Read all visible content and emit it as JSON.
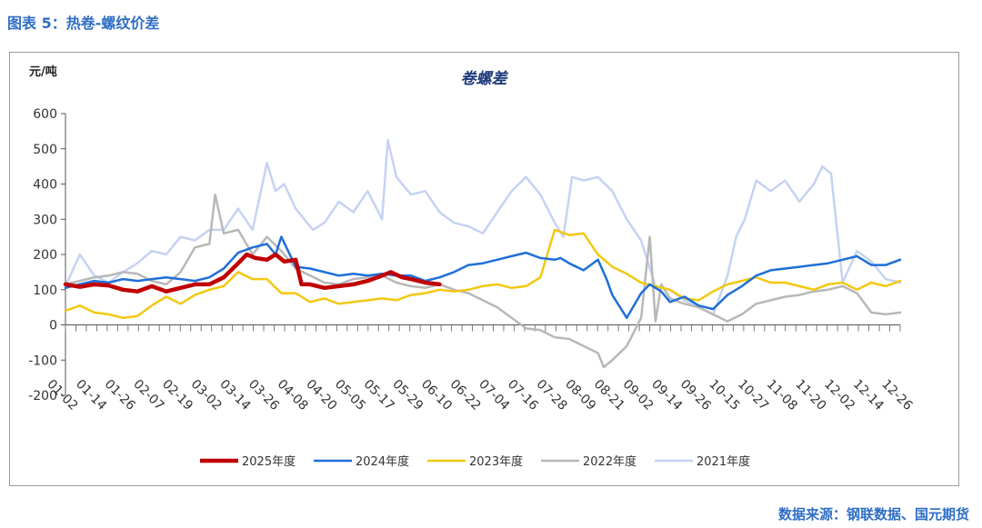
{
  "figure_title": "图表 5：热卷-螺纹价差",
  "source": "数据来源：钢联数据、国元期货",
  "colors": {
    "s2025": "#c00000",
    "s2024": "#1f6fd8",
    "s2023": "#f2c811",
    "s2022": "#b8b8b8",
    "s2021": "#c5d3f2"
  },
  "chart_data": {
    "type": "line",
    "title": "卷螺差",
    "ylabel": "元/吨",
    "ylim": [
      -200,
      600
    ],
    "yticks": [
      600,
      500,
      400,
      300,
      200,
      100,
      0,
      -100,
      -200
    ],
    "yticklabels": [
      "600",
      "500",
      "400",
      "300",
      "200",
      "100",
      "0",
      "-100",
      "-200"
    ],
    "xticklabels": [
      "01-02",
      "01-14",
      "01-26",
      "02-07",
      "02-19",
      "03-02",
      "03-14",
      "03-26",
      "04-08",
      "04-20",
      "05-05",
      "05-17",
      "05-29",
      "06-10",
      "06-22",
      "07-04",
      "07-16",
      "07-28",
      "08-09",
      "08-21",
      "09-02",
      "09-14",
      "09-26",
      "10-15",
      "10-27",
      "11-08",
      "11-20",
      "12-02",
      "12-14",
      "12-26"
    ],
    "legend_position": "bottom",
    "x_range": [
      0,
      29
    ],
    "series": [
      {
        "name": "2025年度",
        "color": "#c00000",
        "width": 4.5,
        "x": [
          0,
          0.5,
          1,
          1.5,
          2,
          2.5,
          3,
          3.5,
          4,
          4.5,
          5,
          5.5,
          6,
          6.3,
          6.6,
          7,
          7.3,
          7.6,
          8,
          8.2,
          8.5,
          9,
          9.5,
          10,
          10.5,
          11,
          11.3,
          11.7,
          12,
          12.5,
          13
        ],
        "y": [
          115,
          108,
          115,
          112,
          100,
          95,
          110,
          95,
          105,
          115,
          115,
          135,
          175,
          200,
          190,
          185,
          200,
          180,
          185,
          115,
          115,
          105,
          110,
          115,
          125,
          140,
          150,
          135,
          130,
          120,
          115
        ]
      },
      {
        "name": "2024年度",
        "color": "#1f6fd8",
        "width": 2.5,
        "x": [
          0,
          0.5,
          1,
          1.5,
          2,
          2.5,
          3,
          3.5,
          4,
          4.5,
          5,
          5.5,
          6,
          6.5,
          7,
          7.3,
          7.5,
          8,
          8.5,
          9,
          9.5,
          10,
          10.5,
          11,
          11.5,
          12,
          12.5,
          13,
          13.5,
          14,
          14.5,
          15,
          15.5,
          16,
          16.5,
          17,
          17.2,
          17.5,
          18,
          18.5,
          18.8,
          19,
          19.5,
          20,
          20.3,
          20.7,
          21,
          21.5,
          22,
          22.5,
          23,
          23.5,
          24,
          24.5,
          25,
          25.5,
          26,
          26.5,
          27,
          27.5,
          28,
          28.5,
          29
        ],
        "y": [
          105,
          115,
          125,
          120,
          130,
          125,
          130,
          135,
          130,
          125,
          135,
          160,
          205,
          220,
          230,
          200,
          250,
          165,
          160,
          150,
          140,
          145,
          140,
          145,
          140,
          140,
          125,
          135,
          150,
          170,
          175,
          185,
          195,
          205,
          190,
          185,
          190,
          175,
          155,
          185,
          130,
          85,
          20,
          90,
          115,
          95,
          65,
          80,
          55,
          45,
          85,
          110,
          140,
          155,
          160,
          165,
          170,
          175,
          185,
          195,
          170,
          170,
          185
        ]
      },
      {
        "name": "2023年度",
        "color": "#f2c811",
        "width": 2.5,
        "x": [
          0,
          0.5,
          1,
          1.5,
          2,
          2.5,
          3,
          3.5,
          4,
          4.5,
          5,
          5.5,
          6,
          6.5,
          7,
          7.5,
          8,
          8.5,
          9,
          9.5,
          10,
          10.5,
          11,
          11.5,
          12,
          12.5,
          13,
          13.5,
          14,
          14.5,
          15,
          15.5,
          16,
          16.5,
          17,
          17.5,
          18,
          18.5,
          19,
          19.5,
          20,
          20.5,
          21,
          21.5,
          22,
          22.5,
          23,
          23.5,
          24,
          24.5,
          25,
          25.5,
          26,
          26.5,
          27,
          27.5,
          28,
          28.5,
          29
        ],
        "y": [
          40,
          55,
          35,
          30,
          20,
          25,
          55,
          80,
          60,
          85,
          100,
          110,
          150,
          130,
          130,
          90,
          90,
          65,
          75,
          60,
          65,
          70,
          75,
          70,
          85,
          90,
          100,
          95,
          100,
          110,
          115,
          105,
          110,
          135,
          270,
          255,
          260,
          200,
          165,
          145,
          120,
          110,
          100,
          75,
          70,
          95,
          115,
          125,
          135,
          120,
          120,
          110,
          100,
          115,
          120,
          100,
          120,
          110,
          125
        ]
      },
      {
        "name": "2022年度",
        "color": "#b8b8b8",
        "width": 2.5,
        "x": [
          0,
          0.5,
          1,
          1.5,
          2,
          2.5,
          3,
          3.5,
          4,
          4.5,
          5,
          5.2,
          5.5,
          6,
          6.5,
          7,
          7.5,
          8,
          8.5,
          9,
          9.5,
          10,
          10.5,
          11,
          11.5,
          12,
          12.5,
          13,
          13.5,
          14,
          14.5,
          15,
          15.5,
          16,
          16.5,
          17,
          17.5,
          18,
          18.5,
          18.7,
          19,
          19.5,
          20,
          20.3,
          20.5,
          20.7,
          21,
          21.5,
          22,
          22.5,
          23,
          23.5,
          24,
          24.5,
          25,
          25.5,
          26,
          26.5,
          27,
          27.5,
          28,
          28.5,
          29
        ],
        "y": [
          115,
          125,
          135,
          140,
          150,
          145,
          125,
          115,
          150,
          220,
          230,
          370,
          260,
          270,
          200,
          250,
          210,
          160,
          140,
          120,
          115,
          130,
          135,
          140,
          120,
          110,
          105,
          115,
          100,
          90,
          70,
          50,
          20,
          -10,
          -15,
          -35,
          -40,
          -60,
          -80,
          -120,
          -100,
          -60,
          20,
          250,
          10,
          115,
          75,
          60,
          50,
          30,
          10,
          30,
          60,
          70,
          80,
          85,
          95,
          100,
          110,
          90,
          35,
          30,
          35
        ]
      },
      {
        "name": "2021年度",
        "color": "#c5d3f2",
        "width": 2.5,
        "x": [
          0,
          0.5,
          1,
          1.5,
          2,
          2.5,
          3,
          3.5,
          4,
          4.5,
          5,
          5.5,
          6,
          6.5,
          7,
          7.3,
          7.6,
          8,
          8.3,
          8.6,
          9,
          9.5,
          10,
          10.5,
          11,
          11.2,
          11.5,
          12,
          12.5,
          13,
          13.5,
          14,
          14.5,
          15,
          15.5,
          16,
          16.5,
          17,
          17.3,
          17.6,
          18,
          18.5,
          19,
          19.5,
          20,
          20.5,
          21,
          21.5,
          22,
          22.5,
          23,
          23.3,
          23.6,
          24,
          24.5,
          25,
          25.5,
          26,
          26.3,
          26.6,
          27,
          27.5,
          28,
          28.5,
          29
        ],
        "y": [
          110,
          200,
          140,
          120,
          150,
          175,
          210,
          200,
          250,
          240,
          270,
          270,
          330,
          270,
          460,
          380,
          400,
          330,
          300,
          270,
          290,
          350,
          320,
          380,
          300,
          525,
          420,
          370,
          380,
          320,
          290,
          280,
          260,
          320,
          380,
          420,
          370,
          290,
          250,
          420,
          410,
          420,
          380,
          300,
          240,
          110,
          100,
          70,
          50,
          30,
          140,
          250,
          300,
          410,
          380,
          410,
          350,
          400,
          450,
          430,
          120,
          210,
          180,
          130,
          120
        ]
      }
    ]
  },
  "chart_data_note_hidden": ""
}
